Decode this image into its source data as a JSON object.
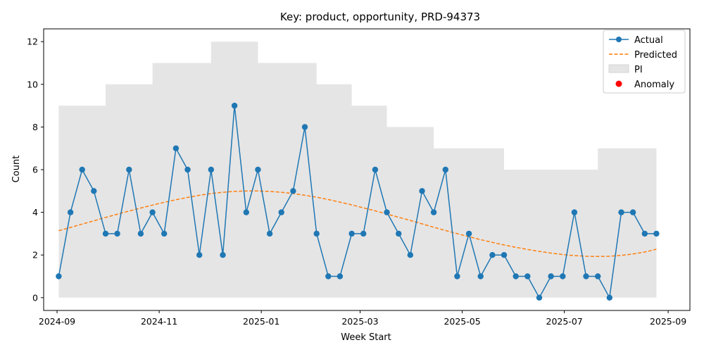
{
  "chart_data": {
    "type": "line",
    "title": "Key: product, opportunity, PRD-94373",
    "xlabel": "Week Start",
    "ylabel": "Count",
    "ylim": [
      -0.6,
      12.6
    ],
    "xlim": [
      "2024-08-24",
      "2025-09-14"
    ],
    "grid": false,
    "legend_position": "top-right",
    "x_ticks": [
      "2024-09",
      "2024-11",
      "2025-01",
      "2025-03",
      "2025-05",
      "2025-07",
      "2025-09"
    ],
    "y_ticks": [
      0,
      2,
      4,
      6,
      8,
      10,
      12
    ],
    "x": [
      "2024-09-02",
      "2024-09-09",
      "2024-09-16",
      "2024-09-23",
      "2024-09-30",
      "2024-10-07",
      "2024-10-14",
      "2024-10-21",
      "2024-10-28",
      "2024-11-04",
      "2024-11-11",
      "2024-11-18",
      "2024-11-25",
      "2024-12-02",
      "2024-12-09",
      "2024-12-16",
      "2024-12-23",
      "2024-12-30",
      "2025-01-06",
      "2025-01-13",
      "2025-01-20",
      "2025-01-27",
      "2025-02-03",
      "2025-02-10",
      "2025-02-17",
      "2025-02-24",
      "2025-03-03",
      "2025-03-10",
      "2025-03-17",
      "2025-03-24",
      "2025-03-31",
      "2025-04-07",
      "2025-04-14",
      "2025-04-21",
      "2025-04-28",
      "2025-05-05",
      "2025-05-12",
      "2025-05-19",
      "2025-05-26",
      "2025-06-02",
      "2025-06-09",
      "2025-06-16",
      "2025-06-23",
      "2025-06-30",
      "2025-07-07",
      "2025-07-14",
      "2025-07-21",
      "2025-07-28",
      "2025-08-04",
      "2025-08-11",
      "2025-08-18",
      "2025-08-25"
    ],
    "series": [
      {
        "name": "Actual",
        "color": "#1f77b4",
        "values": [
          1,
          4,
          6,
          5,
          3,
          3,
          6,
          3,
          4,
          3,
          7,
          6,
          2,
          6,
          2,
          9,
          4,
          6,
          3,
          4,
          5,
          8,
          3,
          1,
          1,
          3,
          3,
          6,
          4,
          3,
          2,
          5,
          4,
          6,
          1,
          3,
          1,
          2,
          2,
          1,
          1,
          0,
          1,
          1,
          4,
          1,
          1,
          0,
          4,
          4,
          3,
          3
        ]
      },
      {
        "name": "Predicted",
        "color": "#ff7f0e",
        "values": [
          3.14,
          3.29,
          3.45,
          3.6,
          3.76,
          3.91,
          4.06,
          4.2,
          4.34,
          4.47,
          4.59,
          4.7,
          4.8,
          4.88,
          4.94,
          4.98,
          5,
          5,
          4.98,
          4.94,
          4.88,
          4.8,
          4.71,
          4.6,
          4.48,
          4.35,
          4.21,
          4.07,
          3.92,
          3.77,
          3.62,
          3.46,
          3.3,
          3.15,
          3,
          2.86,
          2.72,
          2.59,
          2.47,
          2.36,
          2.26,
          2.17,
          2.09,
          2.02,
          1.97,
          1.94,
          1.93,
          1.94,
          1.98,
          2.05,
          2.14,
          2.27
        ]
      }
    ],
    "interval": {
      "name": "PI",
      "color": "#e5e5e5",
      "lower": [
        0,
        0,
        0,
        0,
        0,
        0,
        0,
        0,
        0,
        0,
        0,
        0,
        0,
        0,
        0,
        0,
        0,
        0,
        0,
        0,
        0,
        0,
        0,
        0,
        0,
        0,
        0,
        0,
        0,
        0,
        0,
        0,
        0,
        0,
        0,
        0,
        0,
        0,
        0,
        0,
        0,
        0,
        0,
        0,
        0,
        0,
        0,
        0,
        0,
        0,
        0,
        0
      ],
      "upper": [
        9,
        9,
        9,
        9,
        10,
        10,
        10,
        10,
        11,
        11,
        11,
        11,
        11,
        12,
        12,
        12,
        12,
        11,
        11,
        11,
        11,
        11,
        10,
        10,
        10,
        9,
        9,
        9,
        8,
        8,
        8,
        8,
        7,
        7,
        7,
        7,
        7,
        7,
        6,
        6,
        6,
        6,
        6,
        6,
        6,
        6,
        7,
        7,
        7,
        7,
        7,
        7
      ]
    },
    "anomaly": {
      "name": "Anomaly",
      "color": "#ff0000",
      "points": []
    },
    "legend": [
      "Actual",
      "Predicted",
      "PI",
      "Anomaly"
    ]
  }
}
